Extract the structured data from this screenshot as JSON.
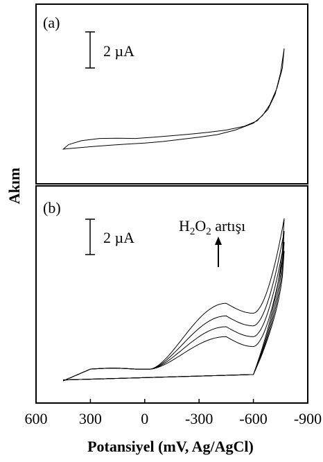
{
  "chart_data": [
    {
      "type": "line",
      "panel_label": "(a)",
      "scale_bar_label": "2 µA",
      "xlim": [
        600,
        -900
      ],
      "series": [
        {
          "values": [
            [
              450,
              0.0
            ],
            [
              420,
              0.3
            ],
            [
              350,
              0.55
            ],
            [
              250,
              0.7
            ],
            [
              150,
              0.72
            ],
            [
              50,
              0.7
            ],
            [
              -50,
              0.78
            ],
            [
              -150,
              0.88
            ],
            [
              -250,
              0.98
            ],
            [
              -350,
              1.1
            ],
            [
              -450,
              1.25
            ],
            [
              -550,
              1.5
            ],
            [
              -620,
              1.85
            ],
            [
              -680,
              2.6
            ],
            [
              -720,
              3.6
            ],
            [
              -750,
              5.0
            ],
            [
              -770,
              6.6
            ],
            [
              -760,
              5.3
            ],
            [
              -730,
              4.0
            ],
            [
              -690,
              2.9
            ],
            [
              -650,
              2.2
            ],
            [
              -600,
              1.7
            ],
            [
              -500,
              1.25
            ],
            [
              -400,
              0.95
            ],
            [
              -300,
              0.78
            ],
            [
              -200,
              0.64
            ],
            [
              -100,
              0.5
            ],
            [
              0,
              0.4
            ],
            [
              100,
              0.33
            ],
            [
              200,
              0.25
            ],
            [
              300,
              0.16
            ],
            [
              400,
              0.06
            ],
            [
              450,
              0.0
            ]
          ]
        }
      ]
    },
    {
      "type": "line",
      "panel_label": "(b)",
      "scale_bar_label": "2 µA",
      "annotation_prefix": "H",
      "annotation_sub1": "2",
      "annotation_mid": "O",
      "annotation_sub2": "2",
      "annotation_suffix": " artışı",
      "xlim": [
        600,
        -900
      ],
      "xticks": [
        "600",
        "300",
        "0",
        "-300",
        "-600",
        "-900"
      ],
      "xlabel": "Potansiyel (mV, Ag/AgCl)",
      "ylabel": "Akım",
      "series": [
        {
          "peak": 2.45,
          "end": 7.2
        },
        {
          "peak": 3.0,
          "end": 7.7
        },
        {
          "peak": 3.6,
          "end": 8.3
        },
        {
          "peak": 4.3,
          "end": 9.0
        }
      ]
    }
  ]
}
